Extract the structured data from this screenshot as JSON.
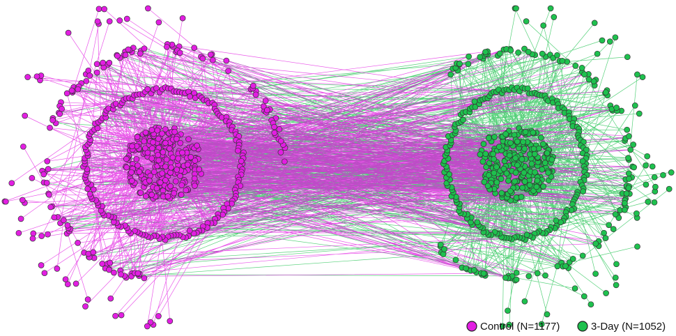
{
  "legend": [
    {
      "label": "Control (N=1177)",
      "color": "#e21ee2"
    },
    {
      "label": "3-Day (N=1052)",
      "color": "#1ec14e"
    }
  ]
}
